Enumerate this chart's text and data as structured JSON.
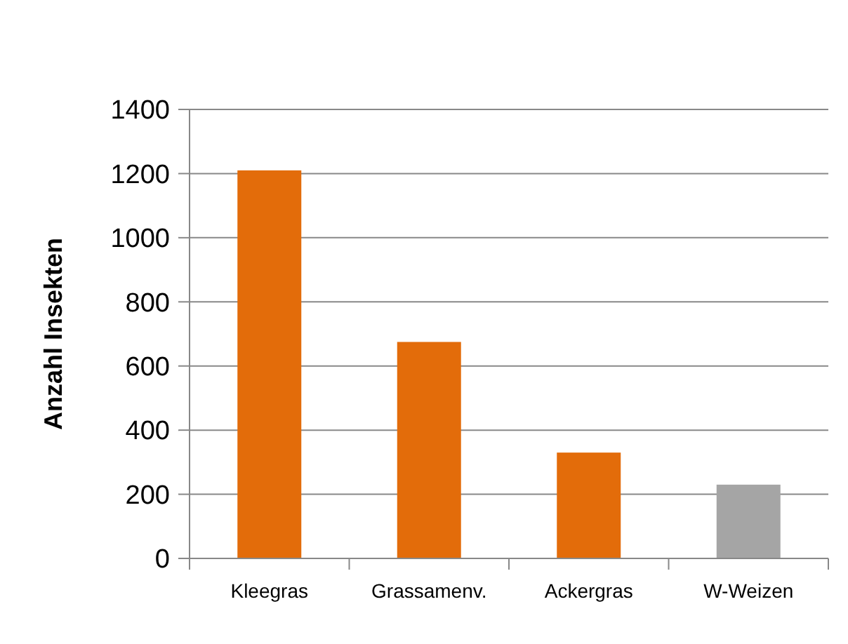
{
  "chart_data": {
    "type": "bar",
    "ylabel": "Anzahl Insekten",
    "categories": [
      "Kleegras",
      "Grassamenv.",
      "Ackergras",
      "W-Weizen"
    ],
    "values": [
      1210,
      675,
      330,
      230
    ],
    "colors": [
      "#e36c0a",
      "#e36c0a",
      "#e36c0a",
      "#a5a5a5"
    ],
    "ylim": [
      0,
      1400
    ],
    "yticks": [
      0,
      200,
      400,
      600,
      800,
      1000,
      1200,
      1400
    ],
    "grid": "y"
  }
}
